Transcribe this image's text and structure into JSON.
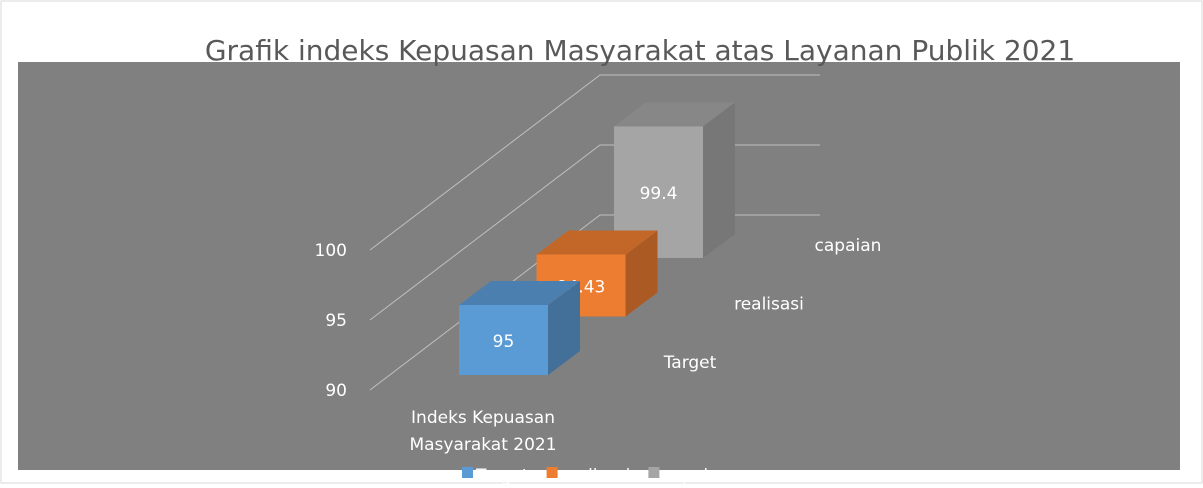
{
  "chart_data": {
    "type": "bar3d",
    "title": "Grafik indeks Kepuasan Masyarakat atas Layanan Publik 2021",
    "categories": [
      "Indeks Kepuasan Masyarakat 2021"
    ],
    "series": [
      {
        "name": "Target",
        "color": "#5b9bd5",
        "values": [
          95
        ]
      },
      {
        "name": "realisasi",
        "color": "#ed7d31",
        "values": [
          94.43
        ]
      },
      {
        "name": "capaian",
        "color": "#a5a5a5",
        "values": [
          99.4
        ]
      }
    ],
    "ylim": [
      90,
      100
    ],
    "yticks": [
      90,
      95,
      100
    ],
    "grid": true,
    "legend": "bottom"
  }
}
